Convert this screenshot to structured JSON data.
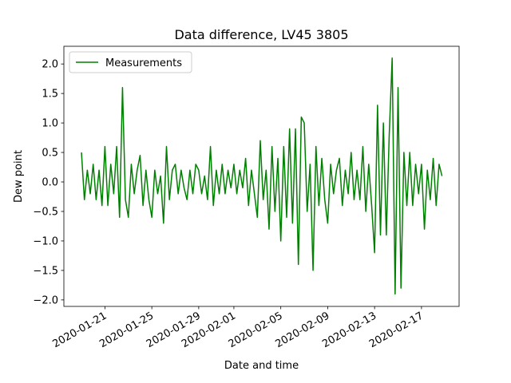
{
  "chart_data": {
    "type": "line",
    "title": "Data difference, LV45 3805",
    "xlabel": "Date and time",
    "ylabel": "Dew point",
    "legend": "upper left",
    "x": [
      "2020-01-19 00:00",
      "2020-01-19 06:00",
      "2020-01-19 12:00",
      "2020-01-19 18:00",
      "2020-01-20 00:00",
      "2020-01-20 06:00",
      "2020-01-20 12:00",
      "2020-01-20 18:00",
      "2020-01-21 00:00",
      "2020-01-21 06:00",
      "2020-01-21 12:00",
      "2020-01-21 18:00",
      "2020-01-22 00:00",
      "2020-01-22 06:00",
      "2020-01-22 12:00",
      "2020-01-22 18:00",
      "2020-01-23 00:00",
      "2020-01-23 06:00",
      "2020-01-23 12:00",
      "2020-01-23 18:00",
      "2020-01-24 00:00",
      "2020-01-24 06:00",
      "2020-01-24 12:00",
      "2020-01-24 18:00",
      "2020-01-25 00:00",
      "2020-01-25 06:00",
      "2020-01-25 12:00",
      "2020-01-25 18:00",
      "2020-01-26 00:00",
      "2020-01-26 06:00",
      "2020-01-26 12:00",
      "2020-01-26 18:00",
      "2020-01-27 00:00",
      "2020-01-27 06:00",
      "2020-01-27 12:00",
      "2020-01-27 18:00",
      "2020-01-28 00:00",
      "2020-01-28 06:00",
      "2020-01-28 12:00",
      "2020-01-28 18:00",
      "2020-01-29 00:00",
      "2020-01-29 06:00",
      "2020-01-29 12:00",
      "2020-01-29 18:00",
      "2020-01-30 00:00",
      "2020-01-30 06:00",
      "2020-01-30 12:00",
      "2020-01-30 18:00",
      "2020-01-31 00:00",
      "2020-01-31 06:00",
      "2020-01-31 12:00",
      "2020-01-31 18:00",
      "2020-02-01 00:00",
      "2020-02-01 06:00",
      "2020-02-01 12:00",
      "2020-02-01 18:00",
      "2020-02-02 00:00",
      "2020-02-02 06:00",
      "2020-02-02 12:00",
      "2020-02-02 18:00",
      "2020-02-03 00:00",
      "2020-02-03 06:00",
      "2020-02-03 12:00",
      "2020-02-03 18:00",
      "2020-02-04 00:00",
      "2020-02-04 06:00",
      "2020-02-04 12:00",
      "2020-02-04 18:00",
      "2020-02-05 00:00",
      "2020-02-05 06:00",
      "2020-02-05 12:00",
      "2020-02-05 18:00",
      "2020-02-06 00:00",
      "2020-02-06 06:00",
      "2020-02-06 12:00",
      "2020-02-06 18:00",
      "2020-02-07 00:00",
      "2020-02-07 06:00",
      "2020-02-07 12:00",
      "2020-02-07 18:00",
      "2020-02-08 00:00",
      "2020-02-08 06:00",
      "2020-02-08 12:00",
      "2020-02-08 18:00",
      "2020-02-09 00:00",
      "2020-02-09 06:00",
      "2020-02-09 12:00",
      "2020-02-09 18:00",
      "2020-02-10 00:00",
      "2020-02-10 06:00",
      "2020-02-10 12:00",
      "2020-02-10 18:00",
      "2020-02-11 00:00",
      "2020-02-11 06:00",
      "2020-02-11 12:00",
      "2020-02-11 18:00",
      "2020-02-12 00:00",
      "2020-02-12 06:00",
      "2020-02-12 12:00",
      "2020-02-12 18:00",
      "2020-02-13 00:00",
      "2020-02-13 06:00",
      "2020-02-13 12:00",
      "2020-02-13 18:00",
      "2020-02-14 00:00",
      "2020-02-14 06:00",
      "2020-02-14 12:00",
      "2020-02-14 18:00",
      "2020-02-15 00:00",
      "2020-02-15 06:00",
      "2020-02-15 12:00",
      "2020-02-15 18:00",
      "2020-02-16 00:00",
      "2020-02-16 06:00",
      "2020-02-16 12:00",
      "2020-02-16 18:00",
      "2020-02-17 00:00",
      "2020-02-17 06:00",
      "2020-02-17 12:00",
      "2020-02-17 18:00",
      "2020-02-18 00:00",
      "2020-02-18 06:00",
      "2020-02-18 12:00",
      "2020-02-18 18:00"
    ],
    "series": [
      {
        "name": "Measurements",
        "color": "#008000",
        "values": [
          0.5,
          -0.3,
          0.2,
          -0.2,
          0.3,
          -0.3,
          0.2,
          -0.4,
          0.6,
          -0.4,
          0.3,
          -0.2,
          0.6,
          -0.6,
          1.6,
          -0.3,
          -0.6,
          0.3,
          -0.2,
          0.2,
          0.45,
          -0.4,
          0.2,
          -0.3,
          -0.6,
          0.2,
          -0.2,
          0.1,
          -0.7,
          0.6,
          -0.3,
          0.2,
          0.3,
          -0.2,
          0.2,
          -0.1,
          -0.3,
          0.2,
          -0.2,
          0.3,
          0.2,
          -0.2,
          0.1,
          -0.3,
          0.6,
          -0.4,
          0.2,
          -0.2,
          0.3,
          -0.2,
          0.2,
          -0.1,
          0.3,
          -0.2,
          0.2,
          -0.1,
          0.4,
          -0.4,
          0.2,
          -0.2,
          -0.6,
          0.7,
          -0.3,
          0.2,
          -0.8,
          0.6,
          -0.5,
          0.4,
          -1.0,
          0.6,
          -0.6,
          0.9,
          -0.7,
          0.9,
          -1.4,
          1.1,
          1.0,
          -0.5,
          0.3,
          -1.5,
          0.6,
          -0.4,
          0.4,
          -0.3,
          -0.7,
          0.3,
          -0.2,
          0.2,
          0.4,
          -0.4,
          0.2,
          -0.2,
          0.5,
          -0.3,
          0.2,
          -0.3,
          0.6,
          -0.5,
          0.3,
          -0.4,
          -1.2,
          1.3,
          -0.9,
          1.0,
          -0.9,
          0.8,
          2.1,
          -1.9,
          1.6,
          -1.8,
          0.5,
          -0.4,
          0.5,
          -0.4,
          0.3,
          -0.2,
          0.3,
          -0.8,
          0.2,
          -0.3,
          0.4,
          -0.4,
          0.3,
          0.1
        ]
      }
    ],
    "xlim": [
      "2020-01-17 12:00",
      "2020-02-20 05:00"
    ],
    "xticks": [
      "2020-01-21",
      "2020-01-25",
      "2020-01-29",
      "2020-02-01",
      "2020-02-05",
      "2020-02-09",
      "2020-02-13",
      "2020-02-17"
    ],
    "ylim": [
      -2.11,
      2.3
    ],
    "yticks": [
      {
        "value": -2,
        "label": "−2.0"
      },
      {
        "value": -1.5,
        "label": "−1.5"
      },
      {
        "value": -1,
        "label": "−1.0"
      },
      {
        "value": -0.5,
        "label": "−0.5"
      },
      {
        "value": 0,
        "label": "0.0"
      },
      0.5,
      {
        "value": 1,
        "label": "1.0"
      },
      1.5,
      {
        "value": 2,
        "label": "2.0"
      }
    ]
  }
}
